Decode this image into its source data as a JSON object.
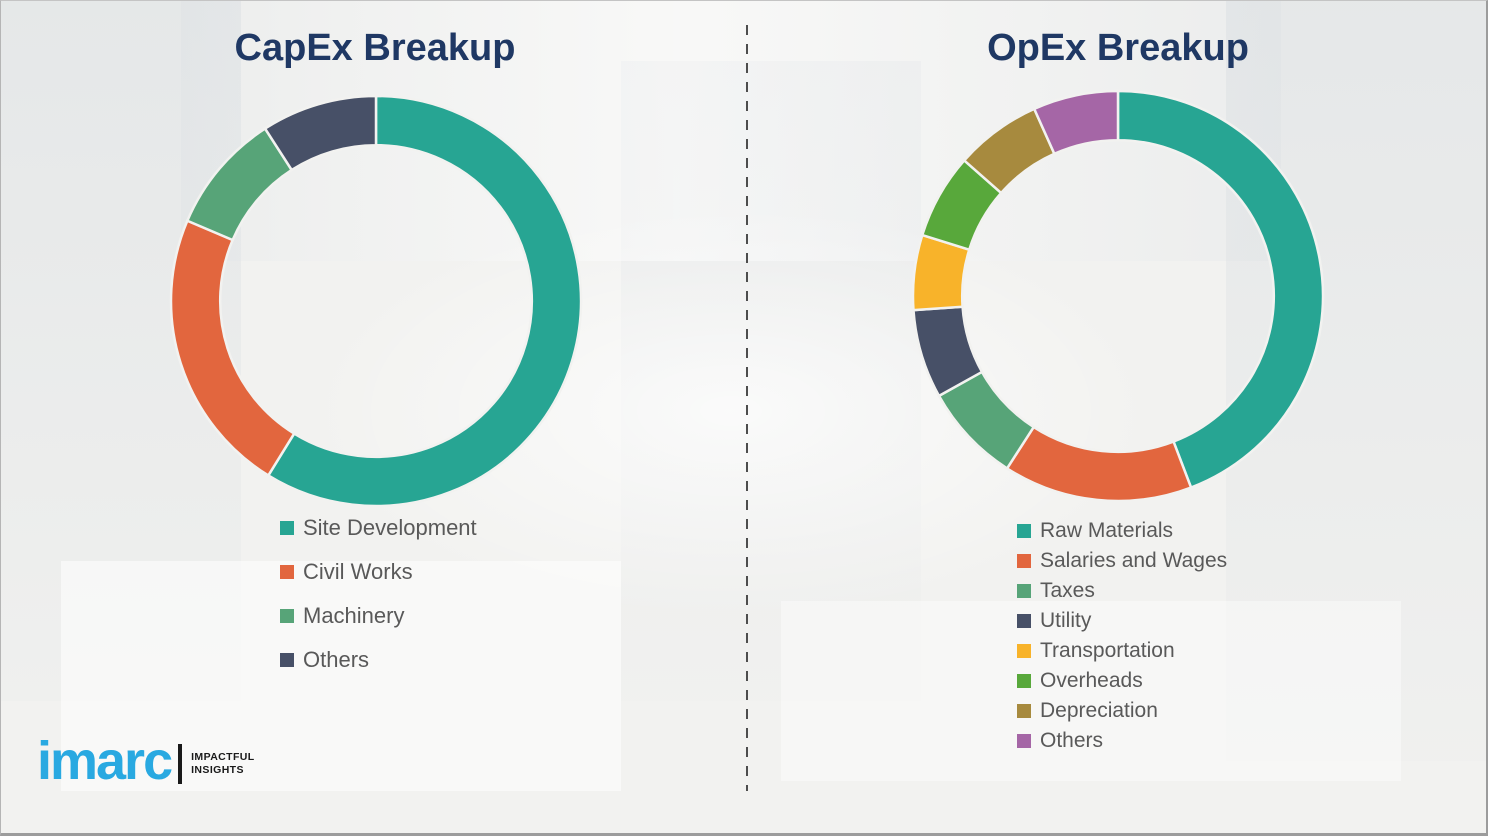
{
  "page": {
    "background_color": "#f2f2f0",
    "divider_color": "#4d4d4d",
    "title_color": "#1f3864",
    "legend_text_color": "#595959"
  },
  "branding": {
    "logo_text": "imarc",
    "tagline_line1": "IMPACTFUL",
    "tagline_line2": "INSIGHTS",
    "logo_color": "#29a9e1"
  },
  "chart_data": [
    {
      "type": "pie",
      "subtype": "donut",
      "title": "CapEx Breakup",
      "categories": [
        "Site Development",
        "Civil Works",
        "Machinery",
        "Others"
      ],
      "values": [
        58.8,
        22.6,
        9.5,
        9.1
      ],
      "unit": "percent share (estimated from arc angles, no data labels shown)",
      "colors": [
        "#27a593",
        "#e2663e",
        "#57a478",
        "#475067"
      ],
      "start_angle_deg": 0,
      "direction": "clockwise",
      "donut_hole_ratio": 0.76,
      "legend_position": "below-left",
      "data_labels": false
    },
    {
      "type": "pie",
      "subtype": "donut",
      "title": "OpEx Breakup",
      "categories": [
        "Raw Materials",
        "Salaries and Wages",
        "Taxes",
        "Utility",
        "Transportation",
        "Overheads",
        "Depreciation",
        "Others"
      ],
      "values": [
        44.2,
        14.9,
        7.8,
        7.0,
        5.9,
        6.7,
        6.8,
        6.7
      ],
      "unit": "percent share (estimated from arc angles, no data labels shown)",
      "colors": [
        "#27a593",
        "#e2663e",
        "#57a478",
        "#475067",
        "#f8b32a",
        "#58a83b",
        "#a78a3e",
        "#a566a6"
      ],
      "start_angle_deg": 0,
      "direction": "clockwise",
      "donut_hole_ratio": 0.76,
      "legend_position": "below-left",
      "data_labels": false
    }
  ]
}
